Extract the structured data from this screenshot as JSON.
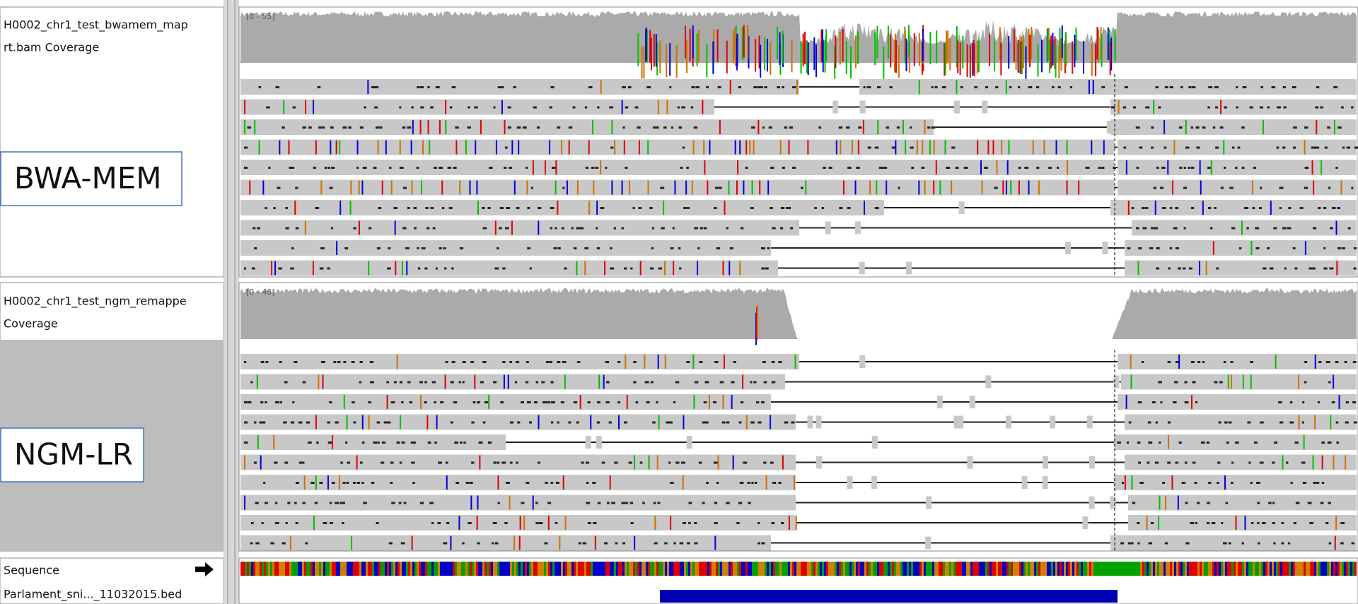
{
  "tracks": [
    {
      "name_line1": "H0002_chr1_test_bwamem_map",
      "name_line2": "rt.bam Coverage",
      "range": "[0 - 55]",
      "label": "BWA-MEM"
    },
    {
      "name_line1": "H0002_chr1_test_ngm_remappe",
      "name_line2": "Coverage",
      "range": "[0 - 46]",
      "label": "NGM-LR"
    }
  ],
  "sequence_track": "Sequence",
  "bed_track": "Parlament_sni..._11032015.bed"
}
